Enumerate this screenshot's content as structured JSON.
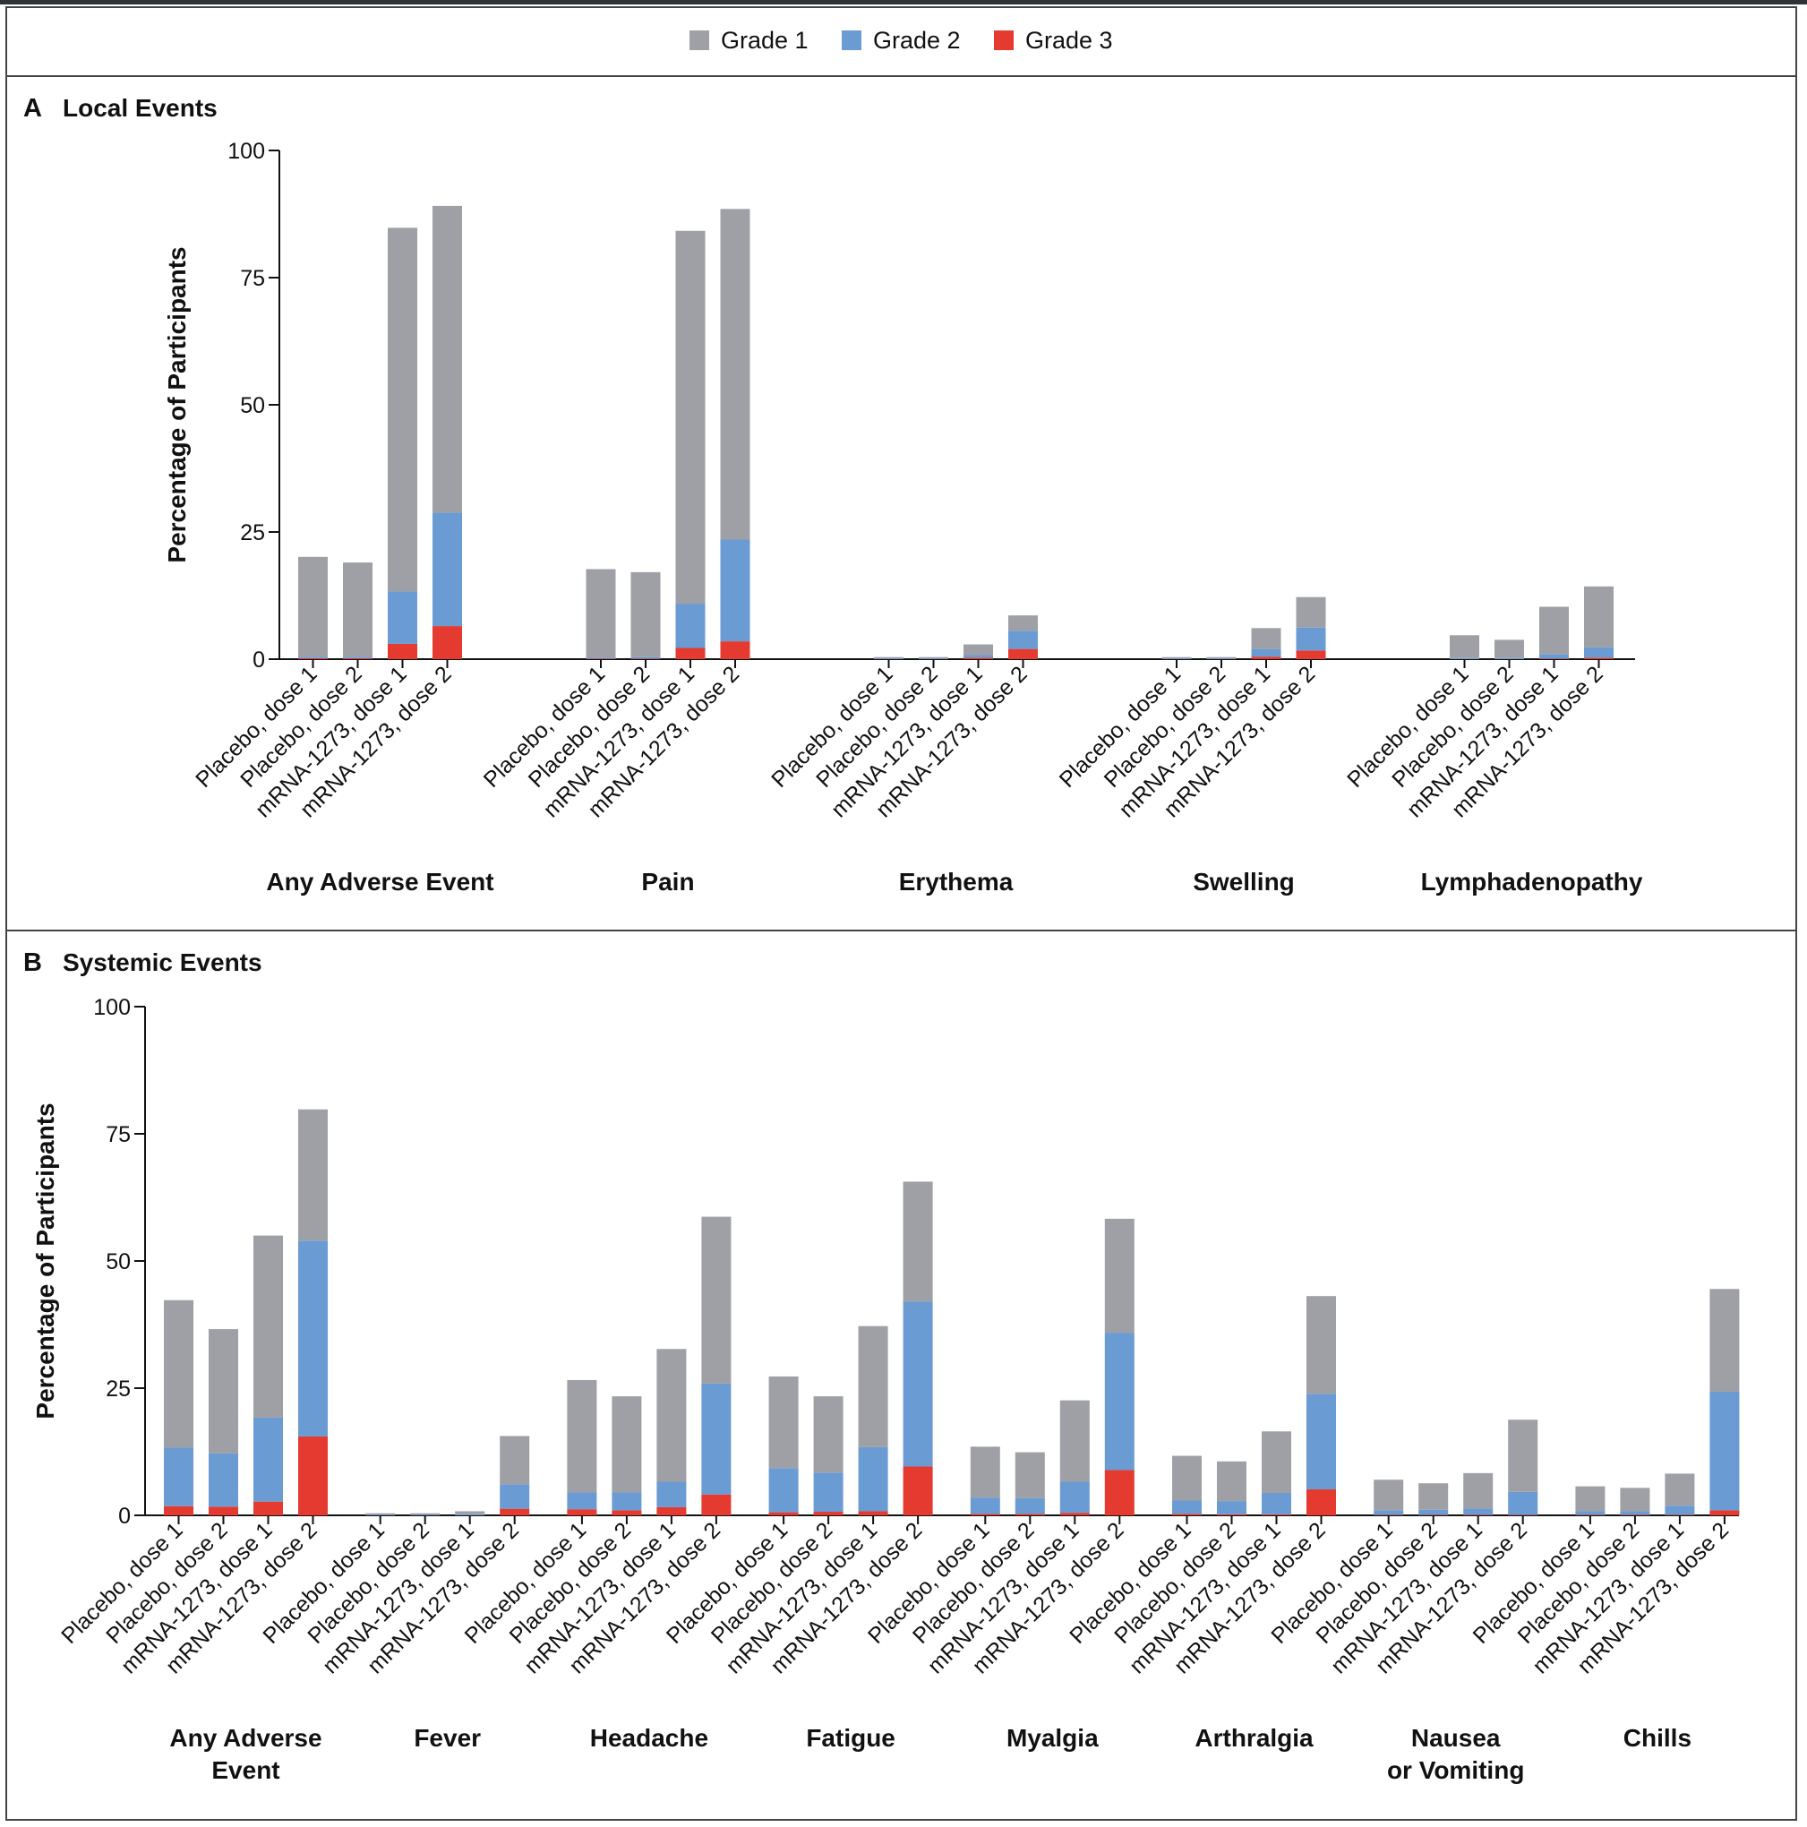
{
  "legend": [
    {
      "label": "Grade 1",
      "color": "#9ea0a6"
    },
    {
      "label": "Grade 2",
      "color": "#6a9bd3"
    },
    {
      "label": "Grade 3",
      "color": "#e53a2f"
    }
  ],
  "bar_labels": [
    "Placebo, dose 1",
    "Placebo, dose 2",
    "mRNA-1273, dose 1",
    "mRNA-1273, dose 2"
  ],
  "chart_data": [
    {
      "type": "bar",
      "stacked": true,
      "panel_letter": "A",
      "title": "Local Events",
      "ylabel": "Percentage of Participants",
      "ylim": [
        0,
        100
      ],
      "yticks": [
        0,
        25,
        50,
        75,
        100
      ],
      "grid": false,
      "legend_position": "top-center",
      "groups": [
        {
          "label": [
            "Any Adverse Event"
          ],
          "bars": [
            {
              "g1": 19.6,
              "g2": 0.3,
              "g3": 0.2
            },
            {
              "g1": 18.5,
              "g2": 0.3,
              "g3": 0.2
            },
            {
              "g1": 71.5,
              "g2": 10.3,
              "g3": 3.0
            },
            {
              "g1": 60.3,
              "g2": 22.3,
              "g3": 6.5
            }
          ]
        },
        {
          "label": [
            "Pain"
          ],
          "bars": [
            {
              "g1": 17.4,
              "g2": 0.2,
              "g3": 0.1
            },
            {
              "g1": 16.7,
              "g2": 0.3,
              "g3": 0.1
            },
            {
              "g1": 73.3,
              "g2": 8.7,
              "g3": 2.2
            },
            {
              "g1": 65.0,
              "g2": 20.0,
              "g3": 3.5
            }
          ]
        },
        {
          "label": [
            "Erythema"
          ],
          "bars": [
            {
              "g1": 0.3,
              "g2": 0.1,
              "g3": 0.0
            },
            {
              "g1": 0.3,
              "g2": 0.1,
              "g3": 0.0
            },
            {
              "g1": 2.1,
              "g2": 0.5,
              "g3": 0.3
            },
            {
              "g1": 3.0,
              "g2": 3.6,
              "g3": 2.0
            }
          ]
        },
        {
          "label": [
            "Swelling"
          ],
          "bars": [
            {
              "g1": 0.3,
              "g2": 0.1,
              "g3": 0.0
            },
            {
              "g1": 0.3,
              "g2": 0.1,
              "g3": 0.0
            },
            {
              "g1": 4.1,
              "g2": 1.5,
              "g3": 0.5
            },
            {
              "g1": 6.0,
              "g2": 4.5,
              "g3": 1.7
            }
          ]
        },
        {
          "label": [
            "Lymphadenopathy"
          ],
          "bars": [
            {
              "g1": 4.5,
              "g2": 0.2,
              "g3": 0.0
            },
            {
              "g1": 3.6,
              "g2": 0.2,
              "g3": 0.0
            },
            {
              "g1": 9.3,
              "g2": 0.9,
              "g3": 0.1
            },
            {
              "g1": 12.0,
              "g2": 2.0,
              "g3": 0.3
            }
          ]
        }
      ]
    },
    {
      "type": "bar",
      "stacked": true,
      "panel_letter": "B",
      "title": "Systemic Events",
      "ylabel": "Percentage of Participants",
      "ylim": [
        0,
        100
      ],
      "yticks": [
        0,
        25,
        50,
        75,
        100
      ],
      "grid": false,
      "groups": [
        {
          "label": [
            "Any Adverse",
            "Event"
          ],
          "bars": [
            {
              "g1": 29.0,
              "g2": 11.5,
              "g3": 1.8
            },
            {
              "g1": 24.4,
              "g2": 10.5,
              "g3": 1.7
            },
            {
              "g1": 35.8,
              "g2": 16.5,
              "g3": 2.7
            },
            {
              "g1": 25.8,
              "g2": 38.5,
              "g3": 15.5
            }
          ]
        },
        {
          "label": [
            "Fever"
          ],
          "bars": [
            {
              "g1": 0.3,
              "g2": 0.1,
              "g3": 0.0
            },
            {
              "g1": 0.3,
              "g2": 0.1,
              "g3": 0.0
            },
            {
              "g1": 0.6,
              "g2": 0.2,
              "g3": 0.0
            },
            {
              "g1": 9.5,
              "g2": 4.8,
              "g3": 1.3
            }
          ]
        },
        {
          "label": [
            "Headache"
          ],
          "bars": [
            {
              "g1": 22.1,
              "g2": 3.3,
              "g3": 1.2
            },
            {
              "g1": 18.9,
              "g2": 3.5,
              "g3": 1.0
            },
            {
              "g1": 26.1,
              "g2": 5.0,
              "g3": 1.6
            },
            {
              "g1": 32.8,
              "g2": 21.8,
              "g3": 4.1
            }
          ]
        },
        {
          "label": [
            "Fatigue"
          ],
          "bars": [
            {
              "g1": 18.0,
              "g2": 8.7,
              "g3": 0.6
            },
            {
              "g1": 15.0,
              "g2": 7.7,
              "g3": 0.7
            },
            {
              "g1": 23.8,
              "g2": 12.6,
              "g3": 0.8
            },
            {
              "g1": 23.6,
              "g2": 32.4,
              "g3": 9.6
            }
          ]
        },
        {
          "label": [
            "Myalgia"
          ],
          "bars": [
            {
              "g1": 10.0,
              "g2": 3.2,
              "g3": 0.3
            },
            {
              "g1": 9.0,
              "g2": 3.1,
              "g3": 0.3
            },
            {
              "g1": 16.0,
              "g2": 6.1,
              "g3": 0.5
            },
            {
              "g1": 22.4,
              "g2": 27.0,
              "g3": 8.9
            }
          ]
        },
        {
          "label": [
            "Arthralgia"
          ],
          "bars": [
            {
              "g1": 8.8,
              "g2": 2.6,
              "g3": 0.3
            },
            {
              "g1": 7.8,
              "g2": 2.6,
              "g3": 0.2
            },
            {
              "g1": 12.1,
              "g2": 4.2,
              "g3": 0.2
            },
            {
              "g1": 19.2,
              "g2": 18.8,
              "g3": 5.1
            }
          ]
        },
        {
          "label": [
            "Nausea",
            "or Vomiting"
          ],
          "bars": [
            {
              "g1": 6.0,
              "g2": 0.9,
              "g3": 0.1
            },
            {
              "g1": 5.2,
              "g2": 1.0,
              "g3": 0.1
            },
            {
              "g1": 7.0,
              "g2": 1.2,
              "g3": 0.1
            },
            {
              "g1": 14.2,
              "g2": 4.5,
              "g3": 0.1
            }
          ]
        },
        {
          "label": [
            "Chills"
          ],
          "bars": [
            {
              "g1": 4.9,
              "g2": 0.7,
              "g3": 0.1
            },
            {
              "g1": 4.6,
              "g2": 0.7,
              "g3": 0.1
            },
            {
              "g1": 6.3,
              "g2": 1.8,
              "g3": 0.1
            },
            {
              "g1": 20.2,
              "g2": 23.3,
              "g3": 1.0
            }
          ]
        }
      ]
    }
  ]
}
